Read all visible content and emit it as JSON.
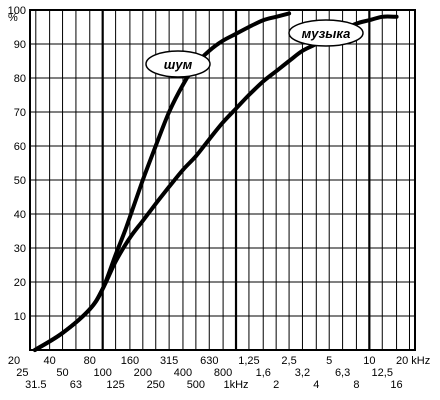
{
  "chart_data": {
    "type": "line",
    "y_unit": "%",
    "x_unit": "20 kHz",
    "ylim": [
      0,
      100
    ],
    "xlim": [
      28.5,
      22000
    ],
    "x_scale": "log",
    "grid": true,
    "y_ticks": [
      "10",
      "20",
      "30",
      "40",
      "50",
      "60",
      "70",
      "80",
      "90",
      "100"
    ],
    "x_ticks_row1": [
      "20",
      "40",
      "80",
      "160",
      "315",
      "630",
      "1,25",
      "2,5",
      "5",
      "10"
    ],
    "x_ticks_row2": [
      "25",
      "50",
      "100",
      "200",
      "400",
      "800",
      "1,6",
      "3,2",
      "6,3",
      "12,5"
    ],
    "x_ticks_row3": [
      "31.5",
      "63",
      "125",
      "250",
      "500",
      "1kHz",
      "2",
      "4",
      "8",
      "16"
    ],
    "series": [
      {
        "name": "шум",
        "x": [
          31,
          50,
          80,
          100,
          125,
          150,
          200,
          250,
          315,
          400,
          500,
          630,
          800,
          1000,
          1250,
          1600,
          2000,
          2500
        ],
        "y": [
          0,
          5,
          12,
          18,
          28,
          36,
          50,
          60,
          70,
          78,
          84,
          88,
          91,
          93,
          95,
          97,
          98,
          99
        ]
      },
      {
        "name": "музыка",
        "x": [
          31,
          50,
          80,
          100,
          125,
          160,
          200,
          250,
          315,
          400,
          500,
          630,
          800,
          1000,
          1250,
          1600,
          2000,
          2500,
          3150,
          4000,
          5000,
          6300,
          8000,
          10000,
          12500,
          16000
        ],
        "y": [
          0,
          5,
          12,
          18,
          26,
          33,
          38,
          43,
          48,
          53,
          57,
          62,
          67,
          71,
          75,
          79,
          82,
          85,
          88,
          90,
          92,
          94,
          96,
          97,
          98,
          98
        ]
      }
    ]
  }
}
